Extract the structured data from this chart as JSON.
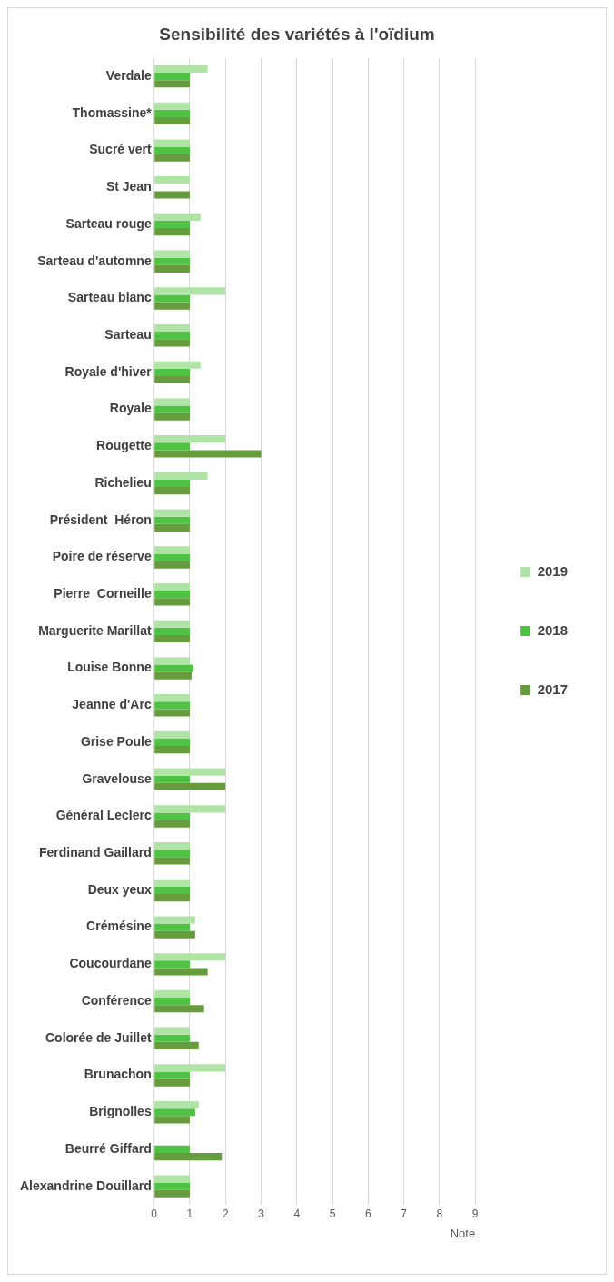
{
  "chart_data": {
    "type": "bar",
    "orientation": "horizontal",
    "title": "Sensibilité des variétés à l'oïdium",
    "xlabel": "Note",
    "categories": [
      "Verdale",
      "Thomassine*",
      "Sucré vert",
      "St Jean",
      "Sarteau rouge",
      "Sarteau d'automne",
      "Sarteau blanc",
      "Sarteau",
      "Royale d'hiver",
      "Royale",
      "Rougette",
      "Richelieu",
      "Président  Héron",
      "Poire de réserve",
      "Pierre  Corneille",
      "Marguerite Marillat",
      "Louise Bonne",
      "Jeanne d'Arc",
      "Grise Poule",
      "Gravelouse",
      "Général Leclerc",
      "Ferdinand Gaillard",
      "Deux yeux",
      "Crémésine",
      "Coucourdane",
      "Conférence",
      "Colorée de Juillet",
      "Brunachon",
      "Brignolles",
      "Beurré Giffard",
      "Alexandrine Douillard"
    ],
    "series": [
      {
        "name": "2019",
        "color": "#b0e3a6",
        "values": [
          1.5,
          1,
          1,
          1,
          1.3,
          1,
          2,
          1,
          1.3,
          1,
          2,
          1.5,
          1,
          1,
          1,
          1,
          1,
          1,
          1,
          2,
          2,
          1,
          1,
          1.15,
          2,
          1,
          1,
          2,
          1.25,
          null,
          1
        ]
      },
      {
        "name": "2018",
        "color": "#4fc243",
        "values": [
          1,
          1,
          1,
          null,
          1,
          1,
          1,
          1,
          1,
          1,
          1,
          1,
          1,
          1,
          1,
          1,
          1.1,
          1,
          1,
          1,
          1,
          1,
          1,
          1,
          1,
          1,
          1,
          1,
          1.15,
          1,
          1
        ]
      },
      {
        "name": "2017",
        "color": "#669b3e",
        "values": [
          1,
          1,
          1,
          1,
          1,
          1,
          1,
          1,
          1,
          1,
          3,
          1,
          1,
          1,
          1,
          1,
          1.05,
          1,
          1,
          2,
          1,
          1,
          1,
          1.15,
          1.5,
          1.4,
          1.25,
          1,
          1,
          1.9,
          1
        ]
      }
    ],
    "xlim": [
      0,
      9
    ],
    "xticks": [
      0,
      1,
      2,
      3,
      4,
      5,
      6,
      7,
      8,
      9
    ],
    "grid": "x",
    "legend": "right"
  }
}
